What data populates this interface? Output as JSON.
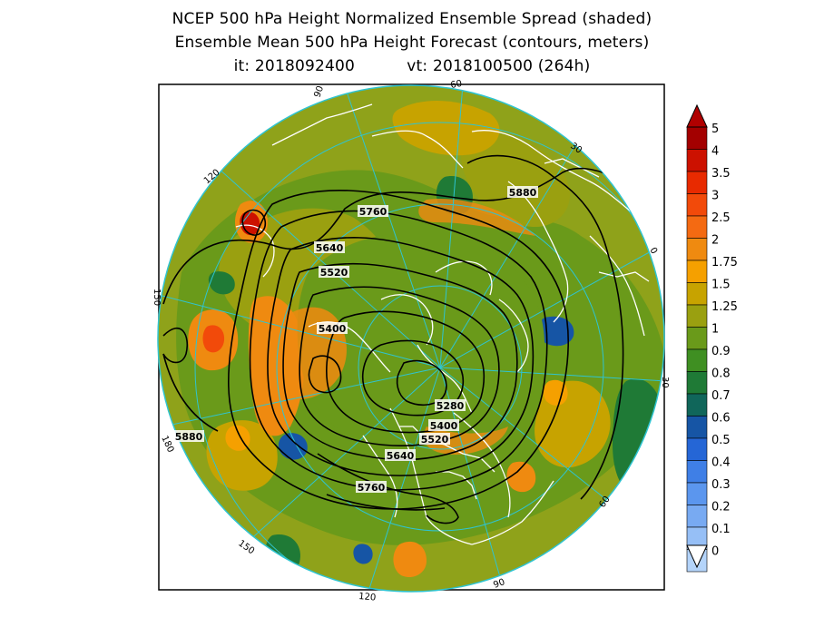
{
  "titles": {
    "line1": "NCEP 500 hPa Height Normalized Ensemble Spread (shaded)",
    "line2": "Ensemble Mean 500 hPa Height Forecast (contours, meters)",
    "init": "it: 2018092400",
    "valid": "vt: 2018100500 (264h)"
  },
  "meridian_labels": [
    {
      "text": "90",
      "angle": -105
    },
    {
      "text": "60",
      "angle": -78
    },
    {
      "text": "30",
      "angle": -47
    },
    {
      "text": "0",
      "angle": -18
    },
    {
      "text": "30",
      "angle": 12
    },
    {
      "text": "60",
      "angle": 42
    },
    {
      "text": "90",
      "angle": 72
    },
    {
      "text": "120",
      "angle": 102
    },
    {
      "text": "150",
      "angle": 132
    },
    {
      "text": "180",
      "angle": 162
    },
    {
      "text": "150",
      "angle": 192
    },
    {
      "text": "120",
      "angle": 222
    }
  ],
  "contour_labels": [
    {
      "text": "5760"
    },
    {
      "text": "5640"
    },
    {
      "text": "5520"
    },
    {
      "text": "5400"
    },
    {
      "text": "5880"
    },
    {
      "text": "5280"
    },
    {
      "text": "5400"
    },
    {
      "text": "5520"
    },
    {
      "text": "5640"
    },
    {
      "text": "5760"
    },
    {
      "text": "5880"
    }
  ],
  "colorbar": {
    "levels": [
      "5",
      "4",
      "3.5",
      "3",
      "2.5",
      "2",
      "1.75",
      "1.5",
      "1.25",
      "1",
      "0.9",
      "0.8",
      "0.7",
      "0.6",
      "0.5",
      "0.4",
      "0.3",
      "0.2",
      "0.1",
      "0"
    ],
    "colors": [
      "#a30000",
      "#cc1100",
      "#e82a00",
      "#f24a0a",
      "#f46a12",
      "#ef8a10",
      "#f5a000",
      "#c7a300",
      "#9aa010",
      "#6a9a1a",
      "#3f8f22",
      "#1f7a36",
      "#10665a",
      "#1655a5",
      "#2566d6",
      "#3f7fe6",
      "#5b96ee",
      "#78aaf2",
      "#96bff6",
      "#b4d4fa"
    ],
    "top_arrow_color": "#b00000",
    "bottom_arrow_color": "#ffffff"
  }
}
